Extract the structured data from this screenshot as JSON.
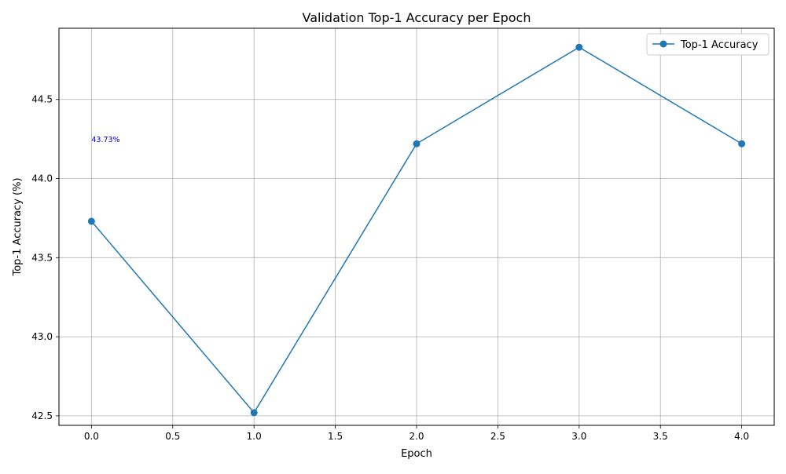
{
  "chart_data": {
    "type": "line",
    "title": "Validation Top-1 Accuracy per Epoch",
    "xlabel": "Epoch",
    "ylabel": "Top-1 Accuracy (%)",
    "xlim": [
      -0.2,
      4.2
    ],
    "ylim": [
      42.44,
      44.95
    ],
    "xticks": [
      0.0,
      0.5,
      1.0,
      1.5,
      2.0,
      2.5,
      3.0,
      3.5,
      4.0
    ],
    "xtick_labels": [
      "0.0",
      "0.5",
      "1.0",
      "1.5",
      "2.0",
      "2.5",
      "3.0",
      "3.5",
      "4.0"
    ],
    "yticks": [
      42.5,
      43.0,
      43.5,
      44.0,
      44.5
    ],
    "ytick_labels": [
      "42.5",
      "43.0",
      "43.5",
      "44.0",
      "44.5"
    ],
    "grid": true,
    "legend_position": "top-right",
    "series": [
      {
        "name": "Top-1 Accuracy",
        "color": "#1f77b4",
        "marker": "circle",
        "x": [
          0,
          1,
          2,
          3,
          4
        ],
        "y": [
          43.73,
          42.52,
          44.22,
          44.83,
          44.22
        ]
      }
    ],
    "annotations": [
      {
        "text": "43.73%",
        "x": 0,
        "y": 44.23,
        "color": "#0000cc"
      }
    ]
  }
}
